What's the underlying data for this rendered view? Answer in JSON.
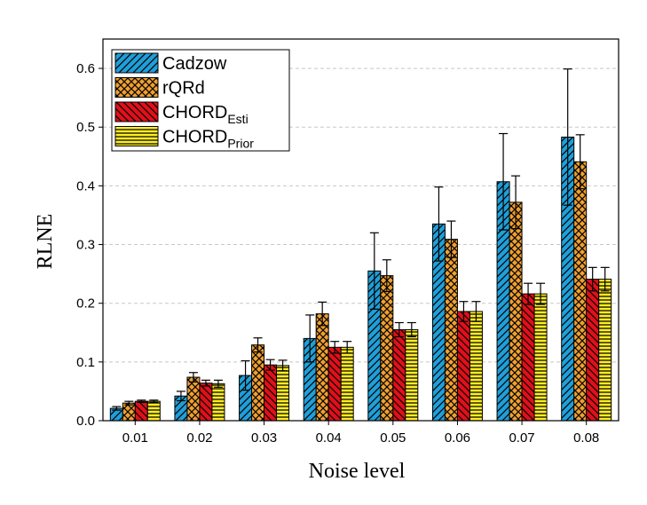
{
  "chart_data": {
    "type": "bar",
    "x_label": "Noise level",
    "y_label": "RLNE",
    "categories": [
      "0.01",
      "0.02",
      "0.03",
      "0.04",
      "0.05",
      "0.06",
      "0.07",
      "0.08"
    ],
    "series": [
      {
        "name": "Cadzow",
        "color": "#1f9fd9",
        "pattern": "slash",
        "values": [
          0.021,
          0.042,
          0.077,
          0.14,
          0.255,
          0.335,
          0.407,
          0.483
        ],
        "errors": [
          0.003,
          0.008,
          0.025,
          0.04,
          0.065,
          0.063,
          0.082,
          0.116
        ]
      },
      {
        "name": "rQRd",
        "color": "#f0a030",
        "pattern": "cross",
        "values": [
          0.03,
          0.074,
          0.129,
          0.182,
          0.247,
          0.309,
          0.372,
          0.441
        ],
        "errors": [
          0.003,
          0.008,
          0.012,
          0.02,
          0.027,
          0.031,
          0.045,
          0.046
        ]
      },
      {
        "name": "CHORD",
        "subscript": "Esti",
        "color": "#e0101a",
        "pattern": "backslash",
        "values": [
          0.033,
          0.064,
          0.095,
          0.125,
          0.155,
          0.186,
          0.216,
          0.241
        ],
        "errors": [
          0.002,
          0.005,
          0.009,
          0.01,
          0.012,
          0.017,
          0.018,
          0.02
        ]
      },
      {
        "name": "CHORD",
        "subscript": "Prior",
        "color": "#ffee22",
        "pattern": "horizontal",
        "values": [
          0.033,
          0.063,
          0.094,
          0.125,
          0.155,
          0.186,
          0.216,
          0.241
        ],
        "errors": [
          0.002,
          0.006,
          0.009,
          0.01,
          0.012,
          0.017,
          0.018,
          0.02
        ]
      }
    ],
    "ylim": [
      0,
      0.65
    ],
    "yticks": [
      {
        "value": 0,
        "label": "0.0"
      },
      0.1,
      0.2,
      0.3,
      0.4,
      0.5,
      0.6
    ],
    "grid": true,
    "legend": "upper left"
  }
}
